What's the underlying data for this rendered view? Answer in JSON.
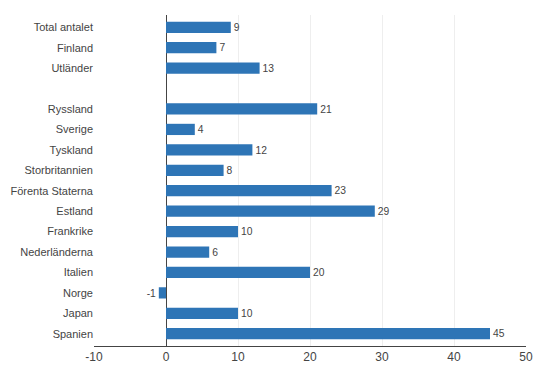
{
  "chart_data": {
    "type": "bar",
    "orientation": "horizontal",
    "categories": [
      "Total antalet",
      "Finland",
      "Utländer",
      null,
      "Ryssland",
      "Sverige",
      "Tyskland",
      "Storbritannien",
      "Förenta Staterna",
      "Estland",
      "Frankrike",
      "Nederländerna",
      "Italien",
      "Norge",
      "Japan",
      "Spanien"
    ],
    "values": [
      9,
      7,
      13,
      null,
      21,
      4,
      12,
      8,
      23,
      29,
      10,
      6,
      20,
      -1,
      10,
      45
    ],
    "color": "#2E75B6",
    "xlim": [
      -10,
      50
    ],
    "xticks": [
      -10,
      0,
      10,
      20,
      30,
      40,
      50
    ],
    "grid": true,
    "data_labels": true
  }
}
